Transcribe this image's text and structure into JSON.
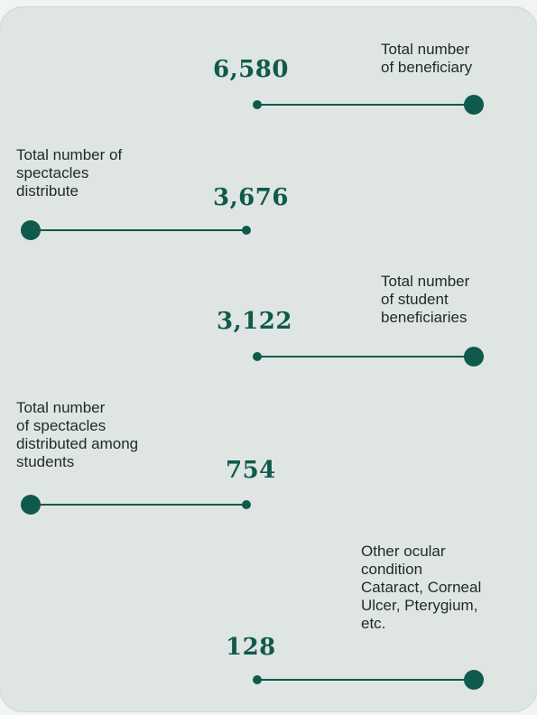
{
  "stats": [
    {
      "value": "6,580",
      "label_lines": [
        "Total number",
        "of beneficiary"
      ]
    },
    {
      "value": "3,676",
      "label_lines": [
        "Total number of",
        "spectacles",
        "distribute"
      ]
    },
    {
      "value": "3,122",
      "label_lines": [
        "Total number",
        "of student",
        "beneficiaries"
      ]
    },
    {
      "value": "754",
      "label_lines": [
        "Total number",
        "of spectacles",
        "distributed among",
        "students"
      ]
    },
    {
      "value": "128",
      "label_lines": [
        "Other ocular",
        "condition",
        "Cataract, Corneal",
        "Ulcer, Pterygium,",
        "etc."
      ]
    }
  ],
  "colors": {
    "accent": "#0f5a4c",
    "card_background": "#dfe5e3",
    "text": "#1f2a28"
  }
}
